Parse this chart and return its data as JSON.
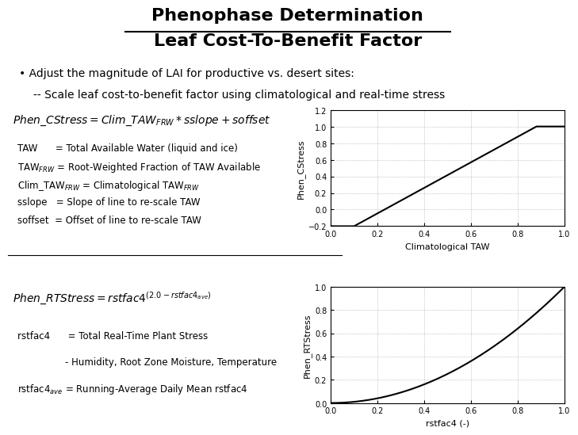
{
  "title_line1": "Phenophase Determination",
  "title_line2": "Leaf Cost-To-Benefit Factor",
  "bullet1": "• Adjust the magnitude of LAI for productive vs. desert sites:",
  "bullet2": "-- Scale leaf cost-to-benefit factor using climatological and real-time stress",
  "plot1_xlabel": "Climatological TAW",
  "plot1_ylabel": "Phen_CStress",
  "plot1_xlim": [
    0.0,
    1.0
  ],
  "plot1_ylim": [
    -0.2,
    1.2
  ],
  "plot1_xticks": [
    0.0,
    0.2,
    0.4,
    0.6,
    0.8,
    1.0
  ],
  "plot1_yticks": [
    -0.2,
    0.0,
    0.2,
    0.4,
    0.6,
    0.8,
    1.0,
    1.2
  ],
  "plot2_xlabel": "rstfac4 (-)",
  "plot2_ylabel": "Phen_RTStress",
  "plot2_xlim": [
    0.0,
    1.0
  ],
  "plot2_ylim": [
    0.0,
    1.0
  ],
  "plot2_xticks": [
    0.0,
    0.2,
    0.4,
    0.6,
    0.8,
    1.0
  ],
  "plot2_yticks": [
    0.0,
    0.2,
    0.4,
    0.6,
    0.8,
    1.0
  ],
  "bg_color": "#ffffff",
  "text_color": "#000000",
  "formula1": "$Phen\\_CStress = Clim\\_TAW_{FRW} * sslope + soffset$",
  "formula2": "$Phen\\_RTStress = rstfac4^{(2.0-rstfac4_{ave})}$",
  "defs1": [
    [
      "TAW     ",
      "= Total Available Water (liquid and ice)"
    ],
    [
      "TAW$_{FRW}$",
      "= Root-Weighted Fraction of TAW Available"
    ],
    [
      "Clim_TAW$_{FRW}$",
      "= Climatological TAW$_{FRW}$"
    ],
    [
      "sslope  ",
      "= Slope of line to re-scale TAW"
    ],
    [
      "soffset ",
      "= Offset of line to re-scale TAW"
    ]
  ],
  "defs2": [
    [
      "rstfac4     ",
      "= Total Real-Time Plant Stress"
    ],
    [
      "            ",
      "   - Humidity, Root Zone Moisture, Temperature"
    ],
    [
      "rstfac4$_{ave}$",
      "= Running-Average Daily Mean rstfac4"
    ]
  ]
}
